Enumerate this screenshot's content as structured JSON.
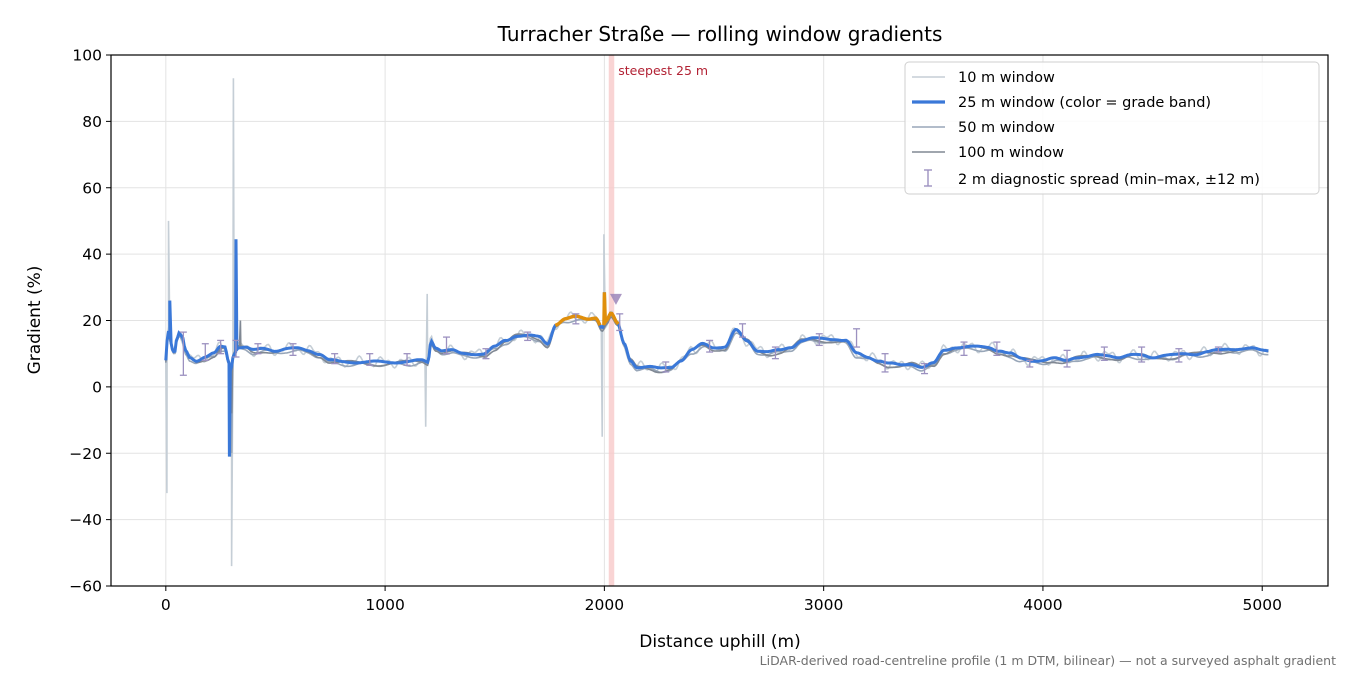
{
  "chart_data": {
    "type": "line",
    "title": "Turracher Straße — rolling window gradients",
    "xlabel": "Distance uphill (m)",
    "ylabel": "Gradient (%)",
    "xlim": [
      -250,
      5300
    ],
    "ylim": [
      -60,
      100
    ],
    "xticks": [
      0,
      1000,
      2000,
      3000,
      4000,
      5000
    ],
    "yticks": [
      -60,
      -40,
      -20,
      0,
      20,
      40,
      60,
      80,
      100
    ],
    "xtick_labels": [
      "0",
      "1000",
      "2000",
      "3000",
      "4000",
      "5000"
    ],
    "ytick_labels": [
      "−60",
      "−40",
      "−20",
      "0",
      "20",
      "40",
      "60",
      "80",
      "100"
    ],
    "grid": true,
    "legend_position": "top-right",
    "legend": [
      "10 m window",
      "25 m window (color = grade band)",
      "50 m window",
      "100 m window",
      "2 m diagnostic spread (min–max, ±12 m)"
    ],
    "colors": {
      "w10": "#c5ced6",
      "w25": "#3a78d8",
      "w50": "#98a6b8",
      "w100": "#808893",
      "band_orange": "#e08f0c",
      "band_red": "#b71c2c",
      "errorbar": "#9c91c0",
      "steep_band": "#f7c9c9",
      "steep_text": "#b22234",
      "marker": "#9c86ba"
    },
    "annotation": {
      "label": "steepest 25 m",
      "x_start": 2020,
      "x_end": 2045,
      "marker_x": 2030,
      "marker_y": 26.5
    },
    "profile": [
      [
        0,
        8
      ],
      [
        10,
        17
      ],
      [
        20,
        14
      ],
      [
        30,
        11
      ],
      [
        40,
        10
      ],
      [
        50,
        14
      ],
      [
        60,
        16
      ],
      [
        75,
        15
      ],
      [
        90,
        11
      ],
      [
        110,
        9
      ],
      [
        140,
        8
      ],
      [
        180,
        9
      ],
      [
        220,
        10
      ],
      [
        250,
        12
      ],
      [
        270,
        12
      ],
      [
        285,
        8
      ],
      [
        295,
        5
      ],
      [
        310,
        10
      ],
      [
        330,
        12
      ],
      [
        360,
        12
      ],
      [
        400,
        11
      ],
      [
        450,
        11.5
      ],
      [
        500,
        11
      ],
      [
        550,
        11.5
      ],
      [
        600,
        11.5
      ],
      [
        650,
        11
      ],
      [
        700,
        10
      ],
      [
        750,
        8
      ],
      [
        800,
        7.5
      ],
      [
        900,
        7.5
      ],
      [
        1000,
        7.5
      ],
      [
        1100,
        7.5
      ],
      [
        1170,
        8
      ],
      [
        1195,
        7.5
      ],
      [
        1210,
        14
      ],
      [
        1230,
        12
      ],
      [
        1260,
        11
      ],
      [
        1300,
        11
      ],
      [
        1350,
        10
      ],
      [
        1400,
        10
      ],
      [
        1450,
        10
      ],
      [
        1500,
        12
      ],
      [
        1550,
        14
      ],
      [
        1600,
        15.5
      ],
      [
        1650,
        15.5
      ],
      [
        1700,
        15
      ],
      [
        1740,
        13
      ],
      [
        1780,
        19
      ],
      [
        1820,
        20.5
      ],
      [
        1870,
        21
      ],
      [
        1920,
        20.5
      ],
      [
        1960,
        21
      ],
      [
        1990,
        18
      ],
      [
        2010,
        20
      ],
      [
        2030,
        22
      ],
      [
        2060,
        19
      ],
      [
        2090,
        13
      ],
      [
        2120,
        8
      ],
      [
        2150,
        6
      ],
      [
        2200,
        6
      ],
      [
        2250,
        5.5
      ],
      [
        2300,
        6
      ],
      [
        2350,
        8
      ],
      [
        2400,
        11
      ],
      [
        2450,
        13
      ],
      [
        2500,
        12
      ],
      [
        2550,
        12
      ],
      [
        2600,
        17
      ],
      [
        2650,
        14
      ],
      [
        2700,
        11
      ],
      [
        2750,
        10.5
      ],
      [
        2800,
        11
      ],
      [
        2850,
        12
      ],
      [
        2900,
        14
      ],
      [
        2950,
        14.5
      ],
      [
        3000,
        14.5
      ],
      [
        3050,
        14.5
      ],
      [
        3100,
        14
      ],
      [
        3150,
        10
      ],
      [
        3200,
        9
      ],
      [
        3250,
        8
      ],
      [
        3300,
        7
      ],
      [
        3350,
        6.5
      ],
      [
        3400,
        7
      ],
      [
        3450,
        6
      ],
      [
        3500,
        7
      ],
      [
        3550,
        11
      ],
      [
        3600,
        12
      ],
      [
        3650,
        12
      ],
      [
        3700,
        12
      ],
      [
        3750,
        12
      ],
      [
        3800,
        11
      ],
      [
        3850,
        10
      ],
      [
        3900,
        8.5
      ],
      [
        3950,
        8
      ],
      [
        4000,
        8
      ],
      [
        4050,
        8.5
      ],
      [
        4100,
        8
      ],
      [
        4150,
        9
      ],
      [
        4200,
        9
      ],
      [
        4250,
        9.5
      ],
      [
        4300,
        9.5
      ],
      [
        4350,
        9
      ],
      [
        4400,
        9.5
      ],
      [
        4450,
        9.5
      ],
      [
        4500,
        9
      ],
      [
        4550,
        9.5
      ],
      [
        4600,
        9.5
      ],
      [
        4650,
        10
      ],
      [
        4700,
        10
      ],
      [
        4750,
        10.5
      ],
      [
        4800,
        11
      ],
      [
        4850,
        11.5
      ],
      [
        4900,
        11.5
      ],
      [
        4950,
        11.5
      ],
      [
        5000,
        11
      ],
      [
        5030,
        11
      ]
    ],
    "spikes_10m": [
      [
        5,
        -32
      ],
      [
        12,
        50
      ],
      [
        300,
        -54
      ],
      [
        308,
        93
      ],
      [
        1185,
        -12
      ],
      [
        1192,
        28
      ],
      [
        1990,
        -15
      ],
      [
        1998,
        46
      ]
    ],
    "spikes_25m": [
      [
        18,
        26
      ],
      [
        320,
        44.5
      ],
      [
        290,
        -21
      ],
      [
        2000,
        28.5
      ]
    ],
    "errorbars": [
      [
        80,
        3.5,
        16.5
      ],
      [
        180,
        8,
        13
      ],
      [
        250,
        10,
        14
      ],
      [
        320,
        9,
        14
      ],
      [
        420,
        10,
        13
      ],
      [
        580,
        9.5,
        13
      ],
      [
        770,
        7,
        10
      ],
      [
        930,
        6.5,
        10
      ],
      [
        1100,
        6.5,
        10
      ],
      [
        1280,
        10,
        15
      ],
      [
        1460,
        8.5,
        11.5
      ],
      [
        1650,
        14,
        16.5
      ],
      [
        1870,
        19,
        22
      ],
      [
        2070,
        17,
        22
      ],
      [
        2280,
        4.5,
        7.5
      ],
      [
        2480,
        10.5,
        14
      ],
      [
        2630,
        15,
        19
      ],
      [
        2780,
        8.5,
        12
      ],
      [
        2980,
        12.5,
        16
      ],
      [
        3150,
        12,
        17.5
      ],
      [
        3280,
        4.5,
        10
      ],
      [
        3460,
        4,
        7
      ],
      [
        3640,
        9.5,
        13.5
      ],
      [
        3790,
        9.5,
        13.5
      ],
      [
        3940,
        6,
        8
      ],
      [
        4110,
        6,
        11
      ],
      [
        4280,
        8,
        12
      ],
      [
        4450,
        7.5,
        12
      ],
      [
        4620,
        7.5,
        11.5
      ],
      [
        4800,
        10.5,
        12
      ]
    ]
  },
  "footnote": "LiDAR-derived road-centreline profile (1 m DTM, bilinear) — not a surveyed asphalt gradient"
}
